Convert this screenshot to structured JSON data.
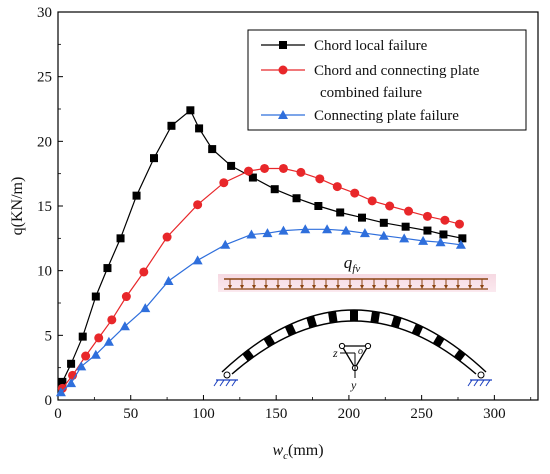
{
  "chart_data": {
    "type": "line",
    "title": "",
    "xlabel_main": "w",
    "xlabel_sub": "c",
    "xlabel_unit": "(mm)",
    "ylabel": "q(KN/m)",
    "xlim": [
      0,
      330
    ],
    "ylim": [
      0,
      30
    ],
    "xticks": [
      "0",
      "50",
      "100",
      "150",
      "200",
      "250",
      "300"
    ],
    "xtick_values": [
      0,
      50,
      100,
      150,
      200,
      250,
      300
    ],
    "yticks": [
      "0",
      "5",
      "10",
      "15",
      "20",
      "25",
      "30"
    ],
    "ytick_values": [
      0,
      5,
      10,
      15,
      20,
      25,
      30
    ],
    "legend_position": "top-right",
    "series": [
      {
        "name": "Chord local failure",
        "color": "#000000",
        "marker": "square",
        "x": [
          3,
          9,
          17,
          26,
          34,
          43,
          54,
          66,
          78,
          91,
          97,
          106,
          119,
          134,
          149,
          164,
          179,
          194,
          209,
          224,
          239,
          254,
          265,
          278
        ],
        "y": [
          1.4,
          2.8,
          4.9,
          8.0,
          10.2,
          12.5,
          15.8,
          18.7,
          21.2,
          22.4,
          21.0,
          19.4,
          18.1,
          17.2,
          16.3,
          15.6,
          15.0,
          14.5,
          14.1,
          13.7,
          13.4,
          13.1,
          12.8,
          12.5
        ]
      },
      {
        "name": "Chord and connecting plate",
        "name_line2": "combined failure",
        "color": "#e8272a",
        "marker": "circle",
        "x": [
          3,
          10,
          19,
          28,
          37,
          47,
          59,
          75,
          96,
          114,
          131,
          142,
          155,
          167,
          180,
          192,
          204,
          216,
          228,
          241,
          254,
          266,
          276
        ],
        "y": [
          0.9,
          1.9,
          3.4,
          4.8,
          6.2,
          8.0,
          9.9,
          12.6,
          15.1,
          16.8,
          17.7,
          17.9,
          17.9,
          17.6,
          17.1,
          16.5,
          16.0,
          15.4,
          15.0,
          14.6,
          14.2,
          13.9,
          13.6
        ]
      },
      {
        "name": "Connecting plate failure",
        "color": "#2f6fdc",
        "marker": "triangle",
        "x": [
          2,
          9,
          16,
          26,
          35,
          46,
          60,
          76,
          96,
          115,
          133,
          144,
          155,
          170,
          185,
          198,
          211,
          224,
          238,
          251,
          263,
          277
        ],
        "y": [
          0.6,
          1.3,
          2.6,
          3.5,
          4.5,
          5.7,
          7.1,
          9.2,
          10.8,
          12.0,
          12.8,
          12.9,
          13.1,
          13.2,
          13.2,
          13.1,
          12.9,
          12.7,
          12.5,
          12.3,
          12.2,
          12.0
        ]
      }
    ],
    "annotation_label_main": "q",
    "annotation_label_sub": "fv",
    "inset_axis_z": "z",
    "inset_axis_y": "y",
    "inset_axis_origin": "o"
  }
}
